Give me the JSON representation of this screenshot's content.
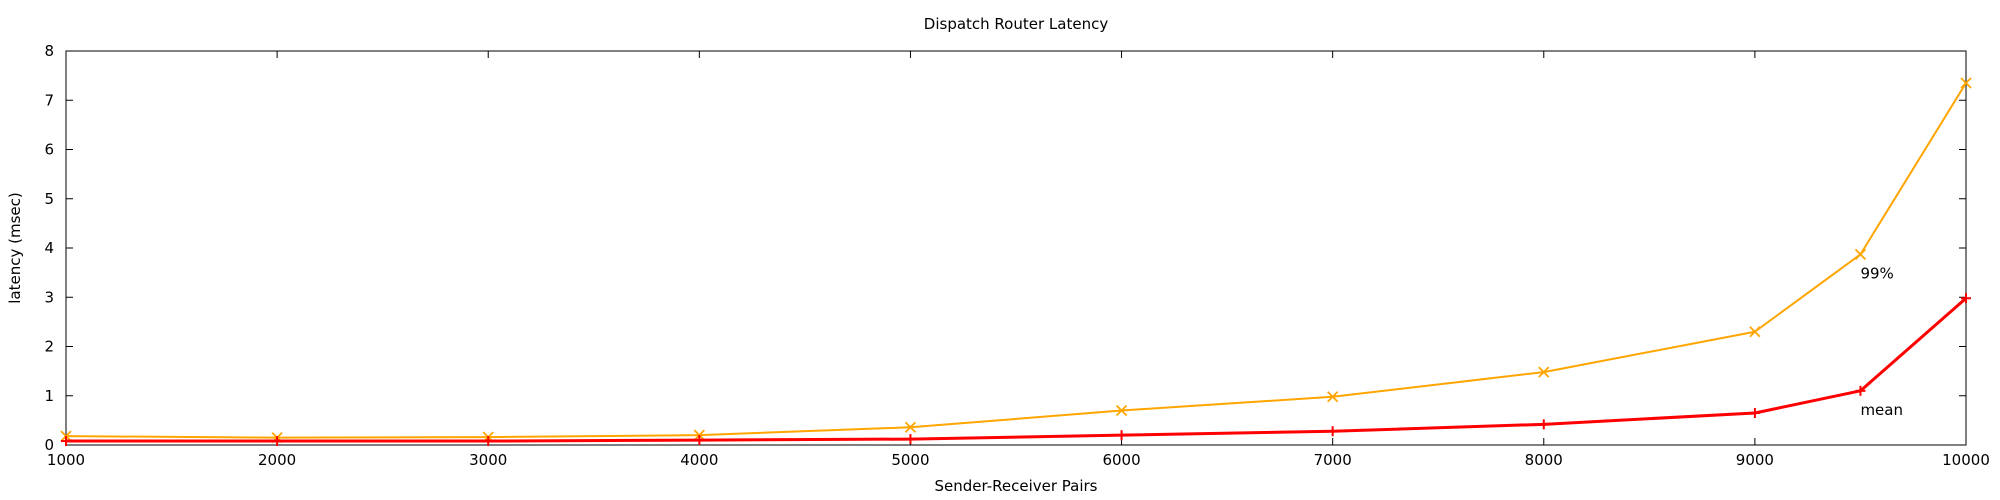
{
  "chart_data": {
    "type": "line",
    "title": "Dispatch Router Latency",
    "xlabel": "Sender-Receiver Pairs",
    "ylabel": "latency (msec)",
    "xlim": [
      1000,
      10000
    ],
    "ylim": [
      0,
      8
    ],
    "xticks": [
      1000,
      2000,
      3000,
      4000,
      5000,
      6000,
      7000,
      8000,
      9000,
      10000
    ],
    "yticks": [
      0,
      1,
      2,
      3,
      4,
      5,
      6,
      7,
      8
    ],
    "grid": false,
    "legend": "none",
    "series": [
      {
        "label": "99%",
        "color": "#ffa500",
        "marker": "x",
        "x": [
          1000,
          2000,
          3000,
          4000,
          5000,
          6000,
          7000,
          8000,
          9000,
          9500,
          10000
        ],
        "values": [
          0.18,
          0.15,
          0.16,
          0.2,
          0.36,
          0.7,
          0.98,
          1.48,
          2.3,
          3.87,
          7.35
        ]
      },
      {
        "label": "mean",
        "color": "#ff0000",
        "marker": "+",
        "x": [
          1000,
          2000,
          3000,
          4000,
          5000,
          6000,
          7000,
          8000,
          9000,
          9500,
          10000
        ],
        "values": [
          0.08,
          0.08,
          0.08,
          0.1,
          0.12,
          0.2,
          0.28,
          0.42,
          0.65,
          1.1,
          2.98
        ]
      }
    ]
  }
}
